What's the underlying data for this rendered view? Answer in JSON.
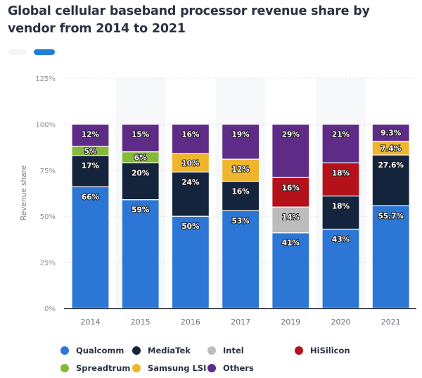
{
  "header": {
    "title": "Global cellular baseband processor revenue share by vendor from 2014 to 2021",
    "tabs": [
      {
        "name": "chart-view",
        "active": false
      },
      {
        "name": "table-view",
        "active": true
      }
    ]
  },
  "chart_data": {
    "type": "bar",
    "stacked": true,
    "title": "Global cellular baseband processor revenue share by vendor from 2014 to 2021",
    "xlabel": "",
    "ylabel": "Revenue share",
    "ylim": [
      0,
      125
    ],
    "yticks": [
      0,
      25,
      50,
      75,
      100,
      125
    ],
    "ytick_labels": [
      "0%",
      "25%",
      "50%",
      "75%",
      "100%",
      "125%"
    ],
    "grid": true,
    "legend_position": "bottom",
    "categories": [
      "2014",
      "2015",
      "2016",
      "2017",
      "2019",
      "2020",
      "2021"
    ],
    "series": [
      {
        "name": "Qualcomm",
        "color": "#2c77d6",
        "values": [
          66,
          59,
          50,
          53,
          41,
          43,
          55.7
        ],
        "labels": [
          "66%",
          "59%",
          "50%",
          "53%",
          "41%",
          "43%",
          "55.7%"
        ]
      },
      {
        "name": "MediaTek",
        "color": "#14243d",
        "values": [
          17,
          20,
          24,
          16,
          0,
          18,
          27.6
        ],
        "labels": [
          "17%",
          "20%",
          "24%",
          "16%",
          "",
          "18%",
          "27.6%"
        ]
      },
      {
        "name": "Intel",
        "color": "#bcbcbc",
        "values": [
          0,
          0,
          0,
          0,
          14,
          0,
          0
        ],
        "labels": [
          "",
          "",
          "",
          "",
          "14%",
          "",
          ""
        ]
      },
      {
        "name": "HiSilicon",
        "color": "#b5111a",
        "values": [
          0,
          0,
          0,
          0,
          16,
          18,
          0
        ],
        "labels": [
          "",
          "",
          "",
          "",
          "16%",
          "18%",
          ""
        ]
      },
      {
        "name": "Spreadtrum",
        "color": "#86b83a",
        "values": [
          5,
          6,
          0,
          0,
          0,
          0,
          0
        ],
        "labels": [
          "5%",
          "6%",
          "",
          "",
          "",
          "",
          ""
        ]
      },
      {
        "name": "Samsung LSI",
        "color": "#efb52c",
        "values": [
          0,
          0,
          10,
          12,
          0,
          0,
          7.4
        ],
        "labels": [
          "",
          "",
          "10%",
          "12%",
          "",
          "",
          "7.4%"
        ]
      },
      {
        "name": "Others",
        "color": "#5e2b86",
        "values": [
          12,
          15,
          16,
          19,
          29,
          21,
          9.3
        ],
        "labels": [
          "12%",
          "15%",
          "16%",
          "19%",
          "29%",
          "21%",
          "9.3%"
        ]
      }
    ]
  },
  "legend": {
    "items": [
      {
        "label": "Qualcomm",
        "color": "#2c77d6"
      },
      {
        "label": "MediaTek",
        "color": "#14243d"
      },
      {
        "label": "Intel",
        "color": "#bcbcbc"
      },
      {
        "label": "HiSilicon",
        "color": "#b5111a"
      },
      {
        "label": "Spreadtrum",
        "color": "#86b83a"
      },
      {
        "label": "Samsung LSI",
        "color": "#efb52c"
      },
      {
        "label": "Others",
        "color": "#5e2b86"
      }
    ]
  }
}
